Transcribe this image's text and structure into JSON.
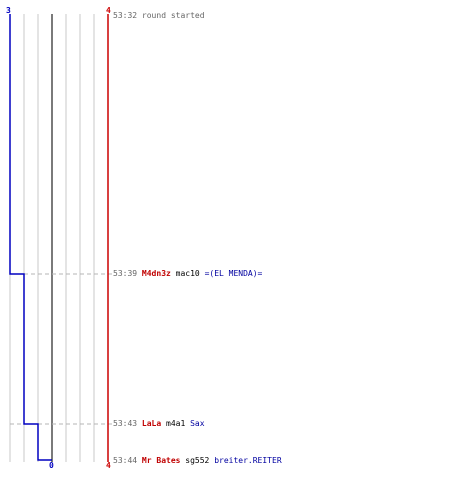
{
  "scores": {
    "blue_start": "3",
    "red_start": "4",
    "blue_end": "0",
    "red_end": "4"
  },
  "colors": {
    "blue": "#0000c0",
    "red": "#cc0000",
    "grid": "#c8c8c8",
    "grid_bold": "#7a7a7a",
    "dashed": "#b4b4b4"
  },
  "events": [
    {
      "time": "53:32",
      "message": "round started"
    },
    {
      "time": "53:39",
      "killer": "M4dn3z",
      "weapon": "mac10",
      "victim": "=(EL MENDA)="
    },
    {
      "time": "53:43",
      "killer": "LaLa",
      "weapon": "m4a1",
      "victim": "Sax"
    },
    {
      "time": "53:44",
      "killer": "Mr Bates",
      "weapon": "sg552",
      "victim": "breiter.REITER"
    }
  ]
}
